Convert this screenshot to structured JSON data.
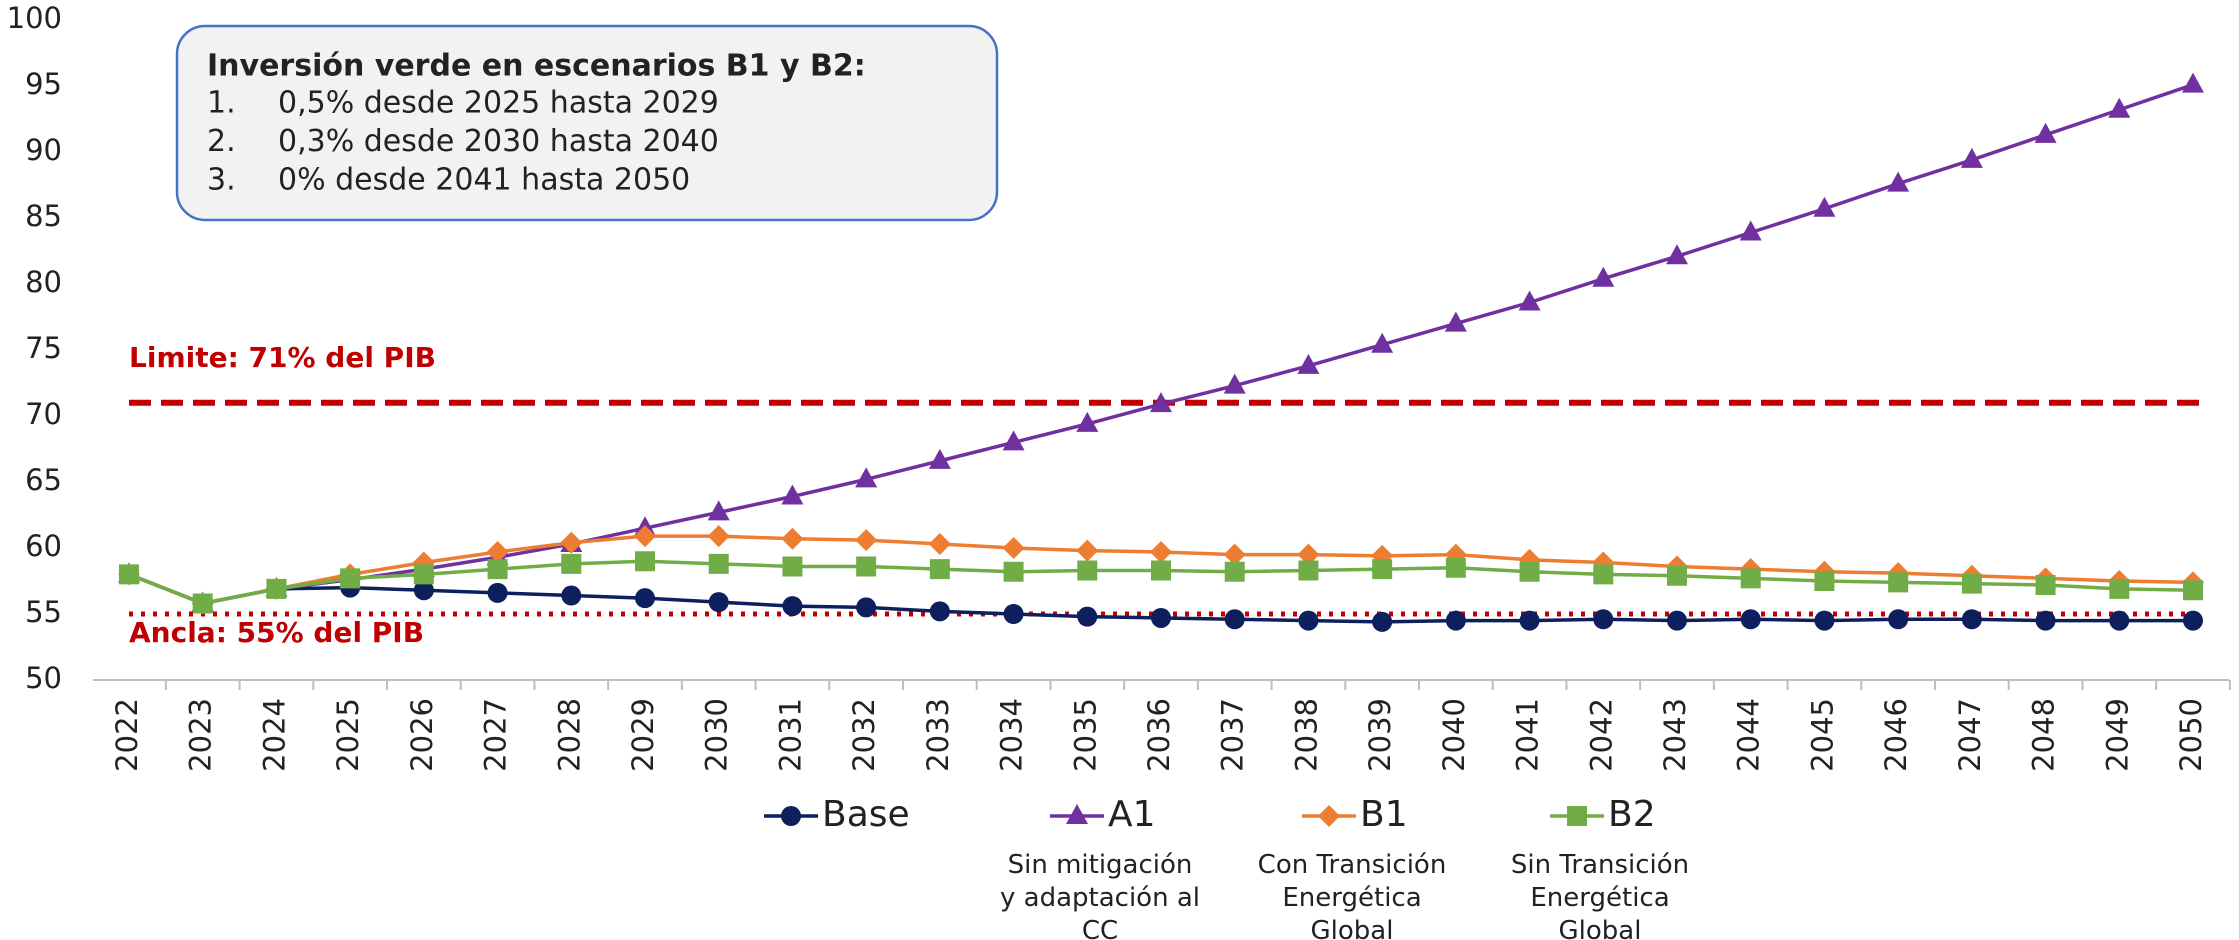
{
  "chart_data": {
    "type": "line",
    "categories": [
      "2022",
      "2023",
      "2024",
      "2025",
      "2026",
      "2027",
      "2028",
      "2029",
      "2030",
      "2031",
      "2032",
      "2033",
      "2034",
      "2035",
      "2036",
      "2037",
      "2038",
      "2039",
      "2040",
      "2041",
      "2042",
      "2043",
      "2044",
      "2045",
      "2046",
      "2047",
      "2048",
      "2049",
      "2050"
    ],
    "series": [
      {
        "name": "Base",
        "color": "#0d1f5c",
        "marker": "circle",
        "values": [
          58,
          55.8,
          56.9,
          57.0,
          56.8,
          56.6,
          56.4,
          56.2,
          55.9,
          55.6,
          55.5,
          55.2,
          55.0,
          54.8,
          54.7,
          54.6,
          54.5,
          54.4,
          54.5,
          54.5,
          54.6,
          54.5,
          54.6,
          54.5,
          54.6,
          54.6,
          54.5,
          54.5,
          54.5
        ]
      },
      {
        "name": "A1",
        "color": "#7030a0",
        "marker": "triangle",
        "note": "Sin mitigación y adaptación al CC",
        "values": [
          58,
          55.8,
          56.9,
          57.6,
          58.4,
          59.3,
          60.3,
          61.5,
          62.7,
          63.9,
          65.2,
          66.6,
          68.0,
          69.4,
          70.9,
          72.3,
          73.8,
          75.4,
          77.0,
          78.6,
          80.4,
          82.1,
          83.9,
          85.7,
          87.6,
          89.4,
          91.3,
          93.2,
          95.1
        ]
      },
      {
        "name": "B1",
        "color": "#ed7d31",
        "marker": "diamond",
        "note": "Con Transición Energética Global",
        "values": [
          58,
          55.8,
          56.9,
          58.0,
          58.9,
          59.7,
          60.4,
          60.9,
          60.9,
          60.7,
          60.6,
          60.3,
          60.0,
          59.8,
          59.7,
          59.5,
          59.5,
          59.4,
          59.5,
          59.1,
          58.9,
          58.6,
          58.4,
          58.2,
          58.1,
          57.9,
          57.7,
          57.5,
          57.4
        ]
      },
      {
        "name": "B2",
        "color": "#70ad47",
        "marker": "square",
        "note": "Sin Transición Energética Global",
        "values": [
          58,
          55.8,
          56.9,
          57.7,
          58.0,
          58.4,
          58.8,
          59.0,
          58.8,
          58.6,
          58.6,
          58.4,
          58.2,
          58.3,
          58.3,
          58.2,
          58.3,
          58.4,
          58.5,
          58.2,
          58.0,
          57.9,
          57.7,
          57.5,
          57.4,
          57.3,
          57.2,
          56.9,
          56.8
        ]
      }
    ],
    "reference_lines": [
      {
        "value": 71,
        "label": "Limite: 71% del PIB",
        "color": "#c00000",
        "style": "dashed"
      },
      {
        "value": 55,
        "label": "Ancla: 55% del PIB",
        "color": "#c00000",
        "style": "dotted"
      }
    ],
    "annotation": {
      "title": "Inversión verde en escenarios B1 y B2:",
      "items": [
        {
          "marker": "1.",
          "text": "0,5% desde 2025 hasta 2029"
        },
        {
          "marker": "2.",
          "text": "0,3% desde 2030 hasta 2040"
        },
        {
          "marker": "3.",
          "text": "0% desde 2041 hasta 2050"
        }
      ]
    },
    "ylim": [
      50,
      100
    ],
    "yticks": [
      50,
      55,
      60,
      65,
      70,
      75,
      80,
      85,
      90,
      95,
      100
    ],
    "grid": false,
    "legend": "bottom"
  }
}
